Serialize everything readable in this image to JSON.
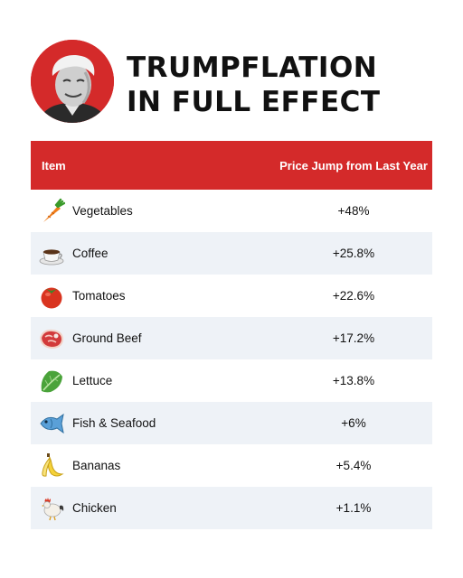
{
  "headline": {
    "line1": "TRUMPFLATION",
    "line2": "IN FULL EFFECT"
  },
  "colors": {
    "accent": "#d42a2a",
    "row_alt": "#eef2f7",
    "text": "#111111"
  },
  "table": {
    "header": {
      "item": "Item",
      "jump": "Price Jump from Last Year"
    },
    "rows": [
      {
        "icon": "carrot-icon",
        "name": "Vegetables",
        "value": "+48%"
      },
      {
        "icon": "coffee-cup-icon",
        "name": "Coffee",
        "value": "+25.8%"
      },
      {
        "icon": "tomato-icon",
        "name": "Tomatoes",
        "value": "+22.6%"
      },
      {
        "icon": "steak-icon",
        "name": "Ground Beef",
        "value": "+17.2%"
      },
      {
        "icon": "lettuce-icon",
        "name": "Lettuce",
        "value": "+13.8%"
      },
      {
        "icon": "fish-icon",
        "name": "Fish & Seafood",
        "value": "+6%"
      },
      {
        "icon": "banana-icon",
        "name": "Bananas",
        "value": "+5.4%"
      },
      {
        "icon": "rooster-icon",
        "name": "Chicken",
        "value": "+1.1%"
      }
    ]
  }
}
